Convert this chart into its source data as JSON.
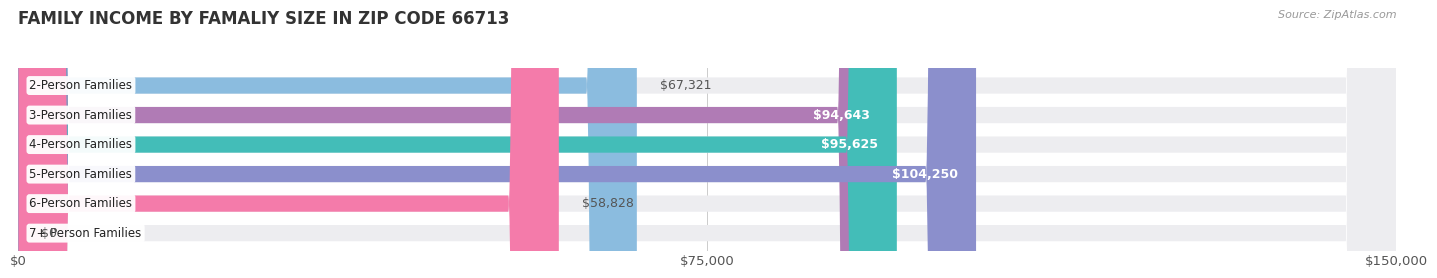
{
  "title": "FAMILY INCOME BY FAMALIY SIZE IN ZIP CODE 66713",
  "source": "Source: ZipAtlas.com",
  "categories": [
    "2-Person Families",
    "3-Person Families",
    "4-Person Families",
    "5-Person Families",
    "6-Person Families",
    "7+ Person Families"
  ],
  "values": [
    67321,
    94643,
    95625,
    104250,
    58828,
    0
  ],
  "bar_colors": [
    "#8BBCDF",
    "#B07BB5",
    "#43BDB8",
    "#8B8FCC",
    "#F47BAA",
    "#F5CFA0"
  ],
  "bar_bg_color": "#EDEDF0",
  "xlim": [
    0,
    150000
  ],
  "xticks": [
    0,
    75000,
    150000
  ],
  "xticklabels": [
    "$0",
    "$75,000",
    "$150,000"
  ],
  "title_fontsize": 12,
  "tick_fontsize": 9.5,
  "bar_label_fontsize": 9,
  "category_fontsize": 8.5,
  "background_color": "#FFFFFF",
  "value_inside_threshold": 80000,
  "label_inside_color": "#FFFFFF",
  "label_outside_color": "#555555"
}
